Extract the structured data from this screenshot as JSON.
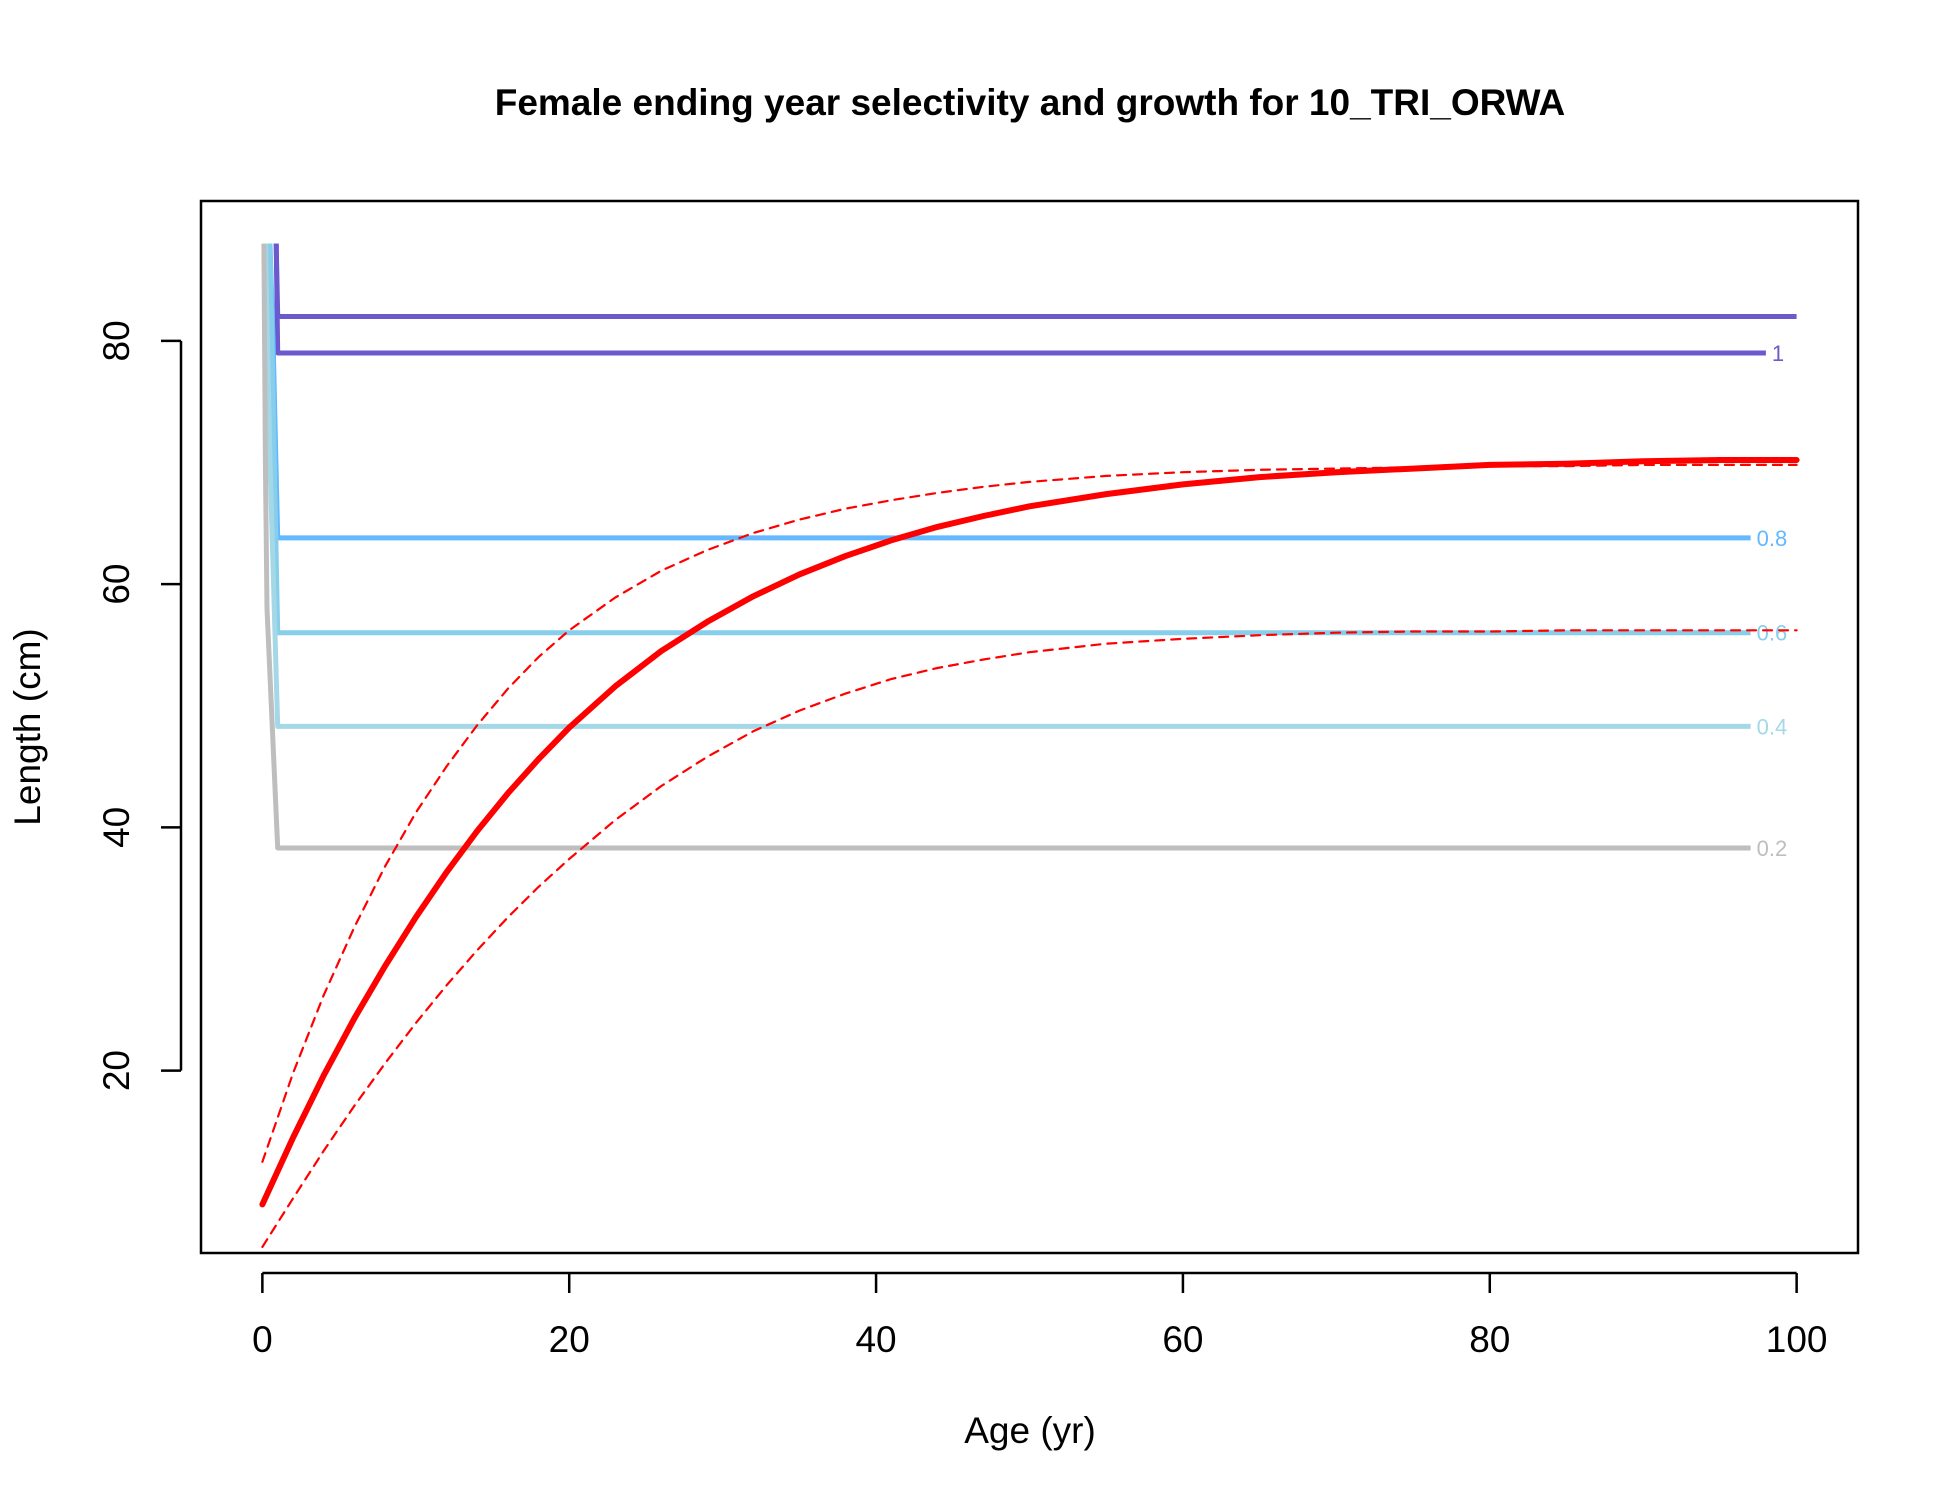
{
  "chart_data": {
    "type": "line",
    "title": "Female ending year selectivity and growth for 10_TRI_ORWA",
    "xlabel": "Age (yr)",
    "ylabel": "Length (cm)",
    "xlim": [
      -4,
      104
    ],
    "ylim": [
      5,
      91.5
    ],
    "xticks": [
      0,
      20,
      40,
      60,
      80,
      100
    ],
    "yticks": [
      20,
      40,
      60,
      80
    ],
    "grid": false,
    "legend": "none",
    "contours": [
      {
        "level_label": "",
        "color": "#6a5acd",
        "points": [
          [
            0.9,
            88
          ],
          [
            1.0,
            82
          ],
          [
            100,
            82
          ]
        ]
      },
      {
        "level_label": "1",
        "color": "#6a5acd",
        "points": [
          [
            0.9,
            88
          ],
          [
            1.0,
            79
          ],
          [
            98,
            79
          ]
        ]
      },
      {
        "level_label": "0.8",
        "color": "#63b8ff",
        "points": [
          [
            0.5,
            88
          ],
          [
            0.7,
            80
          ],
          [
            1.0,
            63.8
          ],
          [
            97,
            63.8
          ]
        ]
      },
      {
        "level_label": "0.6",
        "color": "#87ceeb",
        "points": [
          [
            0.5,
            88
          ],
          [
            0.7,
            75
          ],
          [
            1.0,
            56
          ],
          [
            97,
            56
          ]
        ]
      },
      {
        "level_label": "0.4",
        "color": "#a4d8e6",
        "points": [
          [
            0.2,
            88
          ],
          [
            0.5,
            70
          ],
          [
            1.0,
            48.3
          ],
          [
            97,
            48.3
          ]
        ]
      },
      {
        "level_label": "0.2",
        "color": "#bebebe",
        "points": [
          [
            0.1,
            88
          ],
          [
            0.2,
            70
          ],
          [
            0.3,
            58
          ],
          [
            1.0,
            38.3
          ],
          [
            97,
            38.3
          ]
        ]
      }
    ],
    "series": [
      {
        "name": "",
        "role": "mean",
        "color": "#ff0000",
        "style": "solid",
        "x": [
          0,
          2,
          4,
          6,
          8,
          10,
          12,
          14,
          16,
          18,
          20,
          23,
          26,
          29,
          32,
          35,
          38,
          41,
          44,
          47,
          50,
          55,
          60,
          65,
          70,
          75,
          80,
          85,
          90,
          95,
          100
        ],
        "y": [
          9.0,
          14.5,
          19.6,
          24.3,
          28.6,
          32.6,
          36.3,
          39.7,
          42.8,
          45.6,
          48.2,
          51.6,
          54.5,
          56.9,
          59.0,
          60.8,
          62.3,
          63.6,
          64.7,
          65.6,
          66.4,
          67.4,
          68.2,
          68.8,
          69.2,
          69.5,
          69.8,
          69.9,
          70.1,
          70.2,
          70.2
        ]
      },
      {
        "name": "",
        "role": "upper-interval",
        "color": "#ff0000",
        "style": "dashed",
        "x": [
          0,
          2,
          4,
          6,
          8,
          10,
          12,
          14,
          16,
          18,
          20,
          23,
          26,
          29,
          32,
          35,
          38,
          41,
          44,
          47,
          50,
          55,
          60,
          65,
          70,
          75,
          80,
          85,
          90,
          95,
          100
        ],
        "y": [
          12.5,
          19.8,
          26.2,
          31.8,
          36.8,
          41.2,
          45.0,
          48.4,
          51.4,
          54.0,
          56.2,
          58.9,
          61.1,
          62.8,
          64.2,
          65.3,
          66.2,
          66.9,
          67.5,
          68.0,
          68.4,
          68.9,
          69.2,
          69.4,
          69.5,
          69.6,
          69.7,
          69.7,
          69.8,
          69.8,
          69.8
        ]
      },
      {
        "name": "",
        "role": "lower-interval",
        "color": "#ff0000",
        "style": "dashed",
        "x": [
          0,
          2,
          4,
          6,
          8,
          10,
          12,
          14,
          16,
          18,
          20,
          23,
          26,
          29,
          32,
          35,
          38,
          41,
          44,
          47,
          50,
          55,
          60,
          65,
          70,
          75,
          80,
          85,
          90,
          95,
          100
        ],
        "y": [
          5.5,
          9.5,
          13.4,
          17.1,
          20.6,
          23.9,
          27.0,
          29.9,
          32.6,
          35.1,
          37.4,
          40.6,
          43.4,
          45.8,
          47.9,
          49.6,
          51.0,
          52.2,
          53.1,
          53.8,
          54.4,
          55.1,
          55.5,
          55.8,
          56.0,
          56.1,
          56.1,
          56.2,
          56.2,
          56.2,
          56.2
        ]
      }
    ]
  }
}
